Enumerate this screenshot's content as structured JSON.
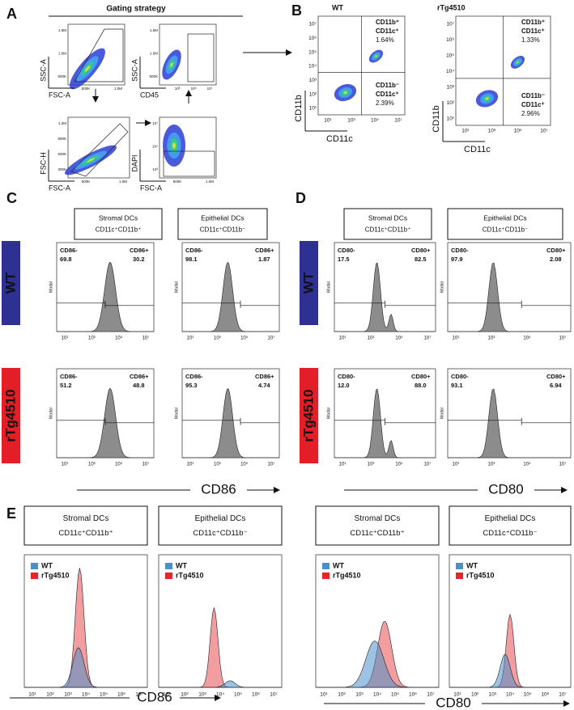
{
  "panel_A": {
    "letter": "A",
    "title": "Gating strategy",
    "plots": [
      {
        "y_label": "SSC-A",
        "x_label": "FSC-A",
        "y_ticks": [
          "1.5M",
          "1.0M",
          "500K"
        ],
        "x_ticks": [
          "500K",
          "1.0M"
        ]
      },
      {
        "y_label": "SSC-A",
        "x_label": "CD45",
        "y_ticks": [
          "1.5M",
          "1.0M",
          "500K"
        ],
        "x_ticks": [
          "10³",
          "10⁵",
          "10⁷"
        ]
      },
      {
        "y_label": "FSC-H",
        "x_label": "FSC-A",
        "y_ticks": [
          "1.2M",
          "900K",
          "600K",
          "300K"
        ],
        "x_ticks": [
          "500K",
          "1.0M"
        ]
      },
      {
        "y_label": "DAPI",
        "x_label": "FSC-A",
        "y_ticks": [
          "10⁷",
          "10⁵",
          "10³"
        ],
        "x_ticks": [
          "500K",
          "1.0M"
        ]
      }
    ]
  },
  "panel_B": {
    "letter": "B",
    "x_label": "CD11c",
    "y_label": "CD11b",
    "y_ticks": [
      "10⁷",
      "10⁶",
      "10⁵",
      "10⁴",
      "10³",
      "10²",
      "10¹"
    ],
    "x_ticks": [
      "10¹",
      "10³",
      "10⁵",
      "10⁷"
    ],
    "plots": [
      {
        "group": "WT",
        "upper": [
          "CD11b⁺",
          "CD11c⁺",
          "1.64%"
        ],
        "lower": [
          "CD11b⁻",
          "CD11c⁺",
          "2.39%"
        ]
      },
      {
        "group": "rTg4510",
        "upper": [
          "CD11b⁺",
          "CD11c⁺",
          "1.33%"
        ],
        "lower": [
          "CD11b⁻",
          "CD11c⁺",
          "2.96%"
        ]
      }
    ]
  },
  "panel_C": {
    "letter": "C",
    "columns": [
      {
        "title": "Stromal DCs",
        "subtitle": "CD11c⁺CD11b⁺"
      },
      {
        "title": "Epithelial DCs",
        "subtitle": "CD11c⁺CD11b⁻"
      }
    ],
    "rows": [
      "WT",
      "rTg4510"
    ],
    "y_label": "Modal",
    "x_label": "CD86",
    "x_ticks": [
      "10¹",
      "10³",
      "10⁵",
      "10⁷"
    ],
    "neg_label": "CD86-",
    "pos_label": "CD86+",
    "stats": [
      [
        {
          "neg": "69.8",
          "pos": "30.2"
        },
        {
          "neg": "98.1",
          "pos": "1.87"
        }
      ],
      [
        {
          "neg": "51.2",
          "pos": "48.8"
        },
        {
          "neg": "95.3",
          "pos": "4.74"
        }
      ]
    ]
  },
  "panel_D": {
    "letter": "D",
    "columns": [
      {
        "title": "Stromal DCs",
        "subtitle": "CD11c⁺CD11b⁺"
      },
      {
        "title": "Epithelial DCs",
        "subtitle": "CD11c⁺CD11b⁻"
      }
    ],
    "rows": [
      "WT",
      "rTg4510"
    ],
    "y_label": "Modal",
    "x_label": "CD80",
    "x_ticks": [
      "10¹",
      "10³",
      "10⁵",
      "10⁷"
    ],
    "neg_label": "CD80-",
    "pos_label": "CD80+",
    "stats": [
      [
        {
          "neg": "17.5",
          "pos": "82.5"
        },
        {
          "neg": "97.9",
          "pos": "2.08"
        }
      ],
      [
        {
          "neg": "12.0",
          "pos": "88.0"
        },
        {
          "neg": "93.1",
          "pos": "6.94"
        }
      ]
    ]
  },
  "panel_E": {
    "letter": "E",
    "legend": [
      {
        "name": "WT",
        "color": "#4f8fc8"
      },
      {
        "name": "rTg4510",
        "color": "#e3262c"
      }
    ],
    "x_ticks": [
      "10¹",
      "10²",
      "10³",
      "10⁴",
      "10⁵",
      "10⁶",
      "10⁷"
    ]
  }
}
